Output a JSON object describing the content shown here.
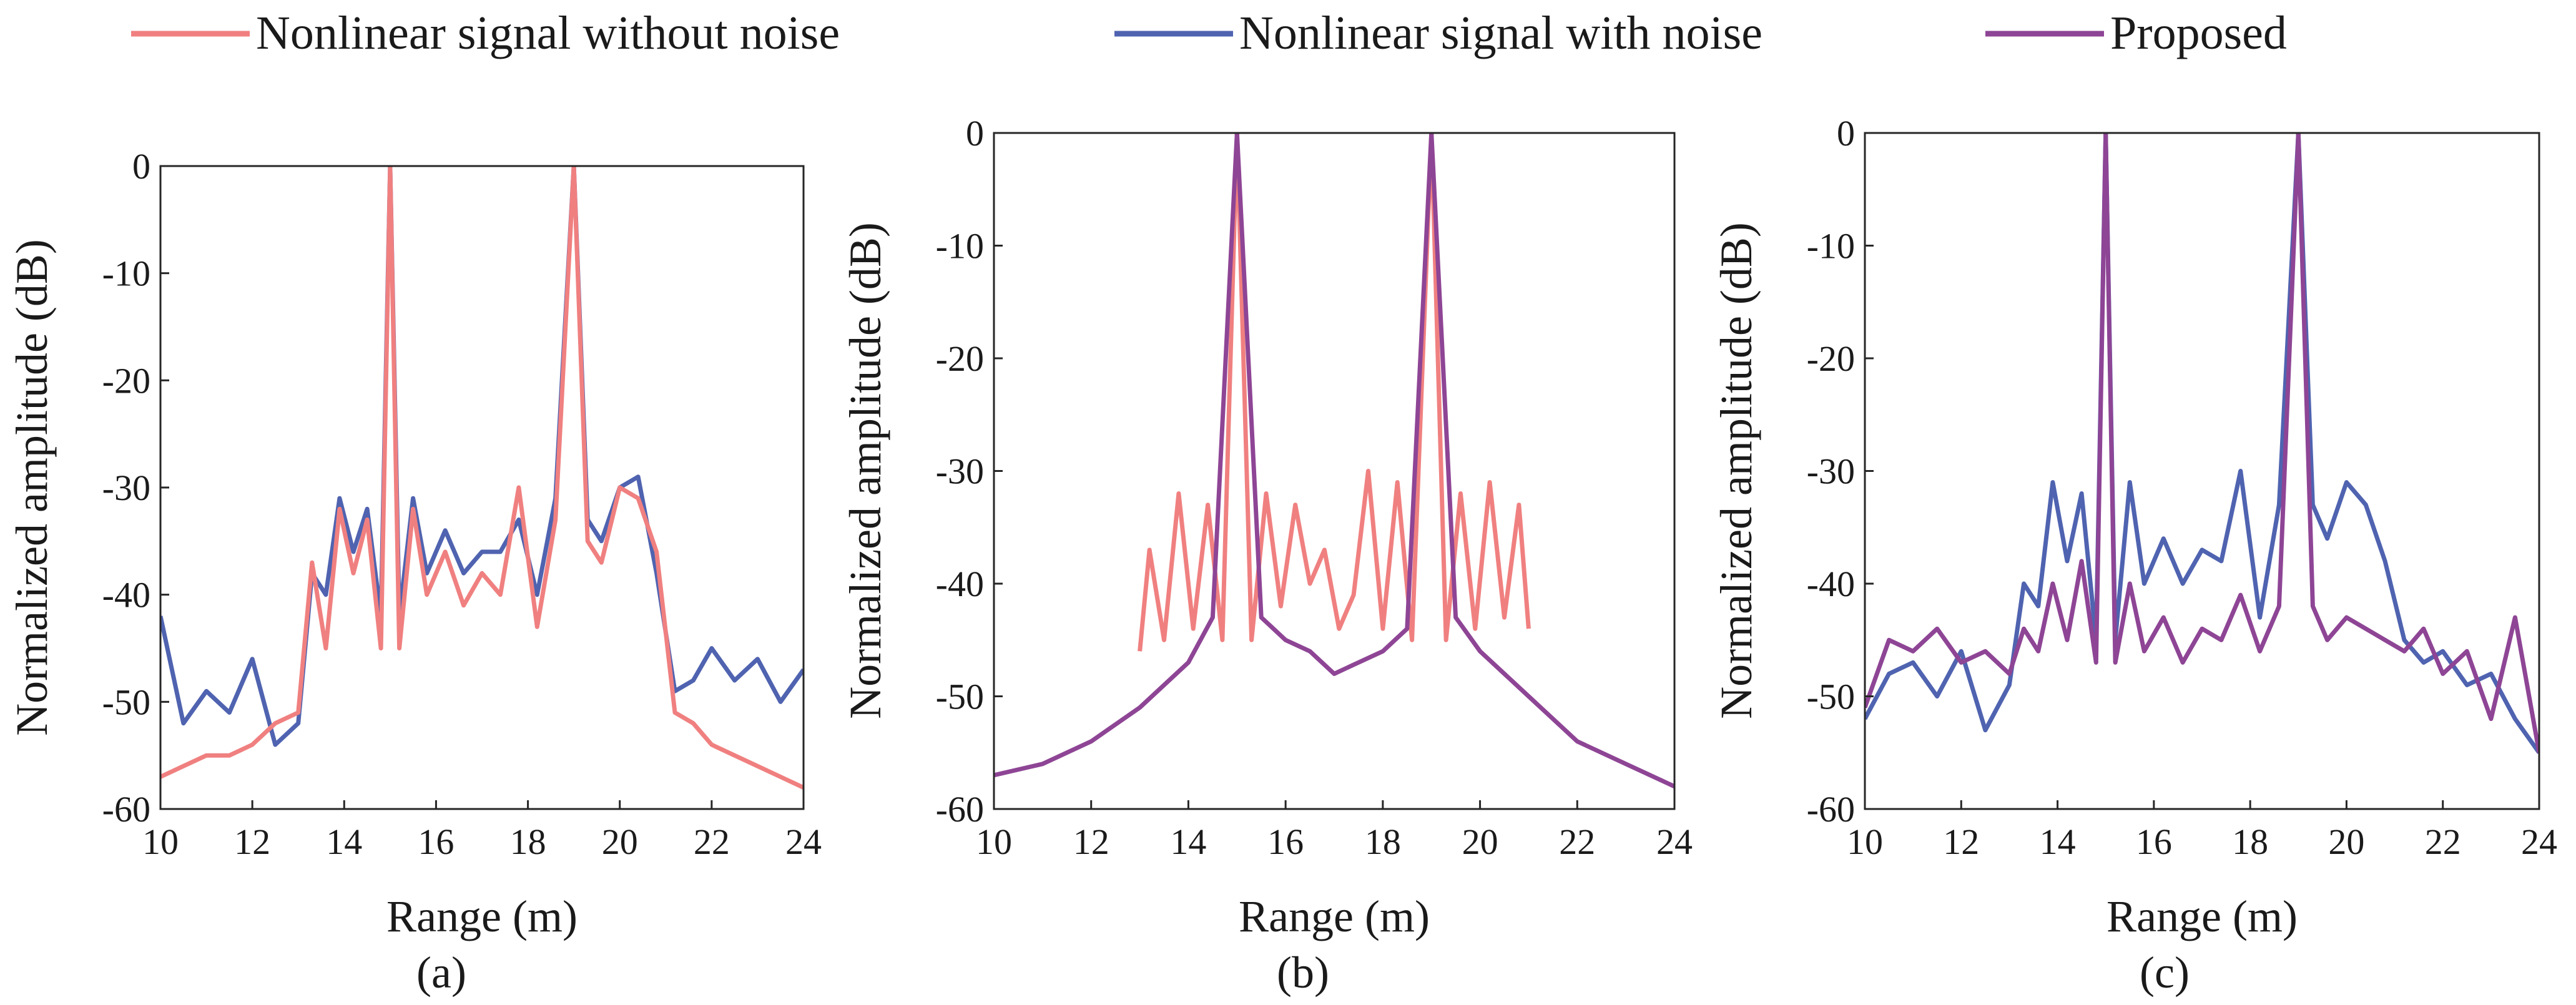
{
  "legend": [
    {
      "label": "Nonlinear signal without noise",
      "color": "#f08080"
    },
    {
      "label": "Nonlinear signal with noise",
      "color": "#4f63b0"
    },
    {
      "label": "Proposed",
      "color": "#8e4595"
    }
  ],
  "chart_data": [
    {
      "type": "line",
      "caption": "(a)",
      "xlabel": "Range (m)",
      "ylabel": "Normalized amplitude (dB)",
      "xlim": [
        10,
        24
      ],
      "ylim": [
        -60,
        0
      ],
      "xticks": [
        10,
        12,
        14,
        16,
        18,
        20,
        22,
        24
      ],
      "yticks": [
        0,
        -10,
        -20,
        -30,
        -40,
        -50,
        -60
      ],
      "series": [
        {
          "name": "Nonlinear signal with noise",
          "color": "#4f63b0",
          "x": [
            10,
            10.5,
            11,
            11.5,
            12,
            12.5,
            13,
            13.3,
            13.6,
            13.9,
            14.2,
            14.5,
            14.8,
            15,
            15.2,
            15.5,
            15.8,
            16.2,
            16.6,
            17,
            17.4,
            17.8,
            18.2,
            18.6,
            19,
            19.3,
            19.6,
            20,
            20.4,
            20.8,
            21.2,
            21.6,
            22,
            22.5,
            23,
            23.5,
            24
          ],
          "values": [
            -42,
            -52,
            -49,
            -51,
            -46,
            -54,
            -52,
            -38,
            -40,
            -31,
            -36,
            -32,
            -42,
            0,
            -42,
            -31,
            -38,
            -34,
            -38,
            -36,
            -36,
            -33,
            -40,
            -31,
            0,
            -33,
            -35,
            -30,
            -29,
            -38,
            -49,
            -48,
            -45,
            -48,
            -46,
            -50,
            -47
          ]
        },
        {
          "name": "Nonlinear signal without noise",
          "color": "#f08080",
          "x": [
            10,
            10.5,
            11,
            11.5,
            12,
            12.5,
            13,
            13.3,
            13.6,
            13.9,
            14.2,
            14.5,
            14.8,
            15,
            15.2,
            15.5,
            15.8,
            16.2,
            16.6,
            17,
            17.4,
            17.8,
            18.2,
            18.6,
            19,
            19.3,
            19.6,
            20,
            20.4,
            20.8,
            21.2,
            21.6,
            22,
            22.5,
            23,
            23.5,
            24
          ],
          "values": [
            -57,
            -56,
            -55,
            -55,
            -54,
            -52,
            -51,
            -37,
            -45,
            -32,
            -38,
            -33,
            -45,
            0,
            -45,
            -32,
            -40,
            -36,
            -41,
            -38,
            -40,
            -30,
            -43,
            -33,
            0,
            -35,
            -37,
            -30,
            -31,
            -36,
            -51,
            -52,
            -54,
            -55,
            -56,
            -57,
            -58
          ]
        }
      ]
    },
    {
      "type": "line",
      "caption": "(b)",
      "xlabel": "Range (m)",
      "ylabel": "Normalized amplitude (dB)",
      "xlim": [
        10,
        24
      ],
      "ylim": [
        -60,
        0
      ],
      "xticks": [
        10,
        12,
        14,
        16,
        18,
        20,
        22,
        24
      ],
      "yticks": [
        0,
        -10,
        -20,
        -30,
        -40,
        -50,
        -60
      ],
      "series": [
        {
          "name": "Nonlinear signal without noise",
          "color": "#f08080",
          "x": [
            13,
            13.2,
            13.5,
            13.8,
            14.1,
            14.4,
            14.7,
            15,
            15.3,
            15.6,
            15.9,
            16.2,
            16.5,
            16.8,
            17.1,
            17.4,
            17.7,
            18,
            18.3,
            18.6,
            19,
            19.3,
            19.6,
            19.9,
            20.2,
            20.5,
            20.8,
            21
          ],
          "values": [
            -46,
            -37,
            -45,
            -32,
            -44,
            -33,
            -45,
            0,
            -45,
            -32,
            -42,
            -33,
            -40,
            -37,
            -44,
            -41,
            -30,
            -44,
            -31,
            -45,
            0,
            -45,
            -32,
            -44,
            -31,
            -43,
            -33,
            -44
          ]
        },
        {
          "name": "Proposed",
          "color": "#8e4595",
          "x": [
            10,
            11,
            12,
            13,
            14,
            14.5,
            15,
            15.5,
            16,
            16.5,
            17,
            17.5,
            18,
            18.5,
            19,
            19.5,
            20,
            21,
            22,
            23,
            24
          ],
          "values": [
            -57,
            -56,
            -54,
            -51,
            -47,
            -43,
            0,
            -43,
            -45,
            -46,
            -48,
            -47,
            -46,
            -44,
            0,
            -43,
            -46,
            -50,
            -54,
            -56,
            -58
          ]
        }
      ]
    },
    {
      "type": "line",
      "caption": "(c)",
      "xlabel": "Range (m)",
      "ylabel": "Normalized amplitude (dB)",
      "xlim": [
        10,
        24
      ],
      "ylim": [
        -60,
        0
      ],
      "xticks": [
        10,
        12,
        14,
        16,
        18,
        20,
        22,
        24
      ],
      "yticks": [
        0,
        -10,
        -20,
        -30,
        -40,
        -50,
        -60
      ],
      "series": [
        {
          "name": "Nonlinear signal with noise",
          "color": "#4f63b0",
          "x": [
            10,
            10.5,
            11,
            11.5,
            12,
            12.5,
            13,
            13.3,
            13.6,
            13.9,
            14.2,
            14.5,
            14.8,
            15,
            15.2,
            15.5,
            15.8,
            16.2,
            16.6,
            17,
            17.4,
            17.8,
            18.2,
            18.6,
            19,
            19.3,
            19.6,
            20,
            20.4,
            20.8,
            21.2,
            21.6,
            22,
            22.5,
            23,
            23.5,
            24
          ],
          "values": [
            -52,
            -48,
            -47,
            -50,
            -46,
            -53,
            -49,
            -40,
            -42,
            -31,
            -38,
            -32,
            -45,
            0,
            -45,
            -31,
            -40,
            -36,
            -40,
            -37,
            -38,
            -30,
            -43,
            -33,
            0,
            -33,
            -36,
            -31,
            -33,
            -38,
            -45,
            -47,
            -46,
            -49,
            -48,
            -52,
            -55
          ]
        },
        {
          "name": "Proposed",
          "color": "#8e4595",
          "x": [
            10,
            10.5,
            11,
            11.5,
            12,
            12.5,
            13,
            13.3,
            13.6,
            13.9,
            14.2,
            14.5,
            14.8,
            15,
            15.2,
            15.5,
            15.8,
            16.2,
            16.6,
            17,
            17.4,
            17.8,
            18.2,
            18.6,
            19,
            19.3,
            19.6,
            20,
            20.4,
            20.8,
            21.2,
            21.6,
            22,
            22.5,
            23,
            23.5,
            24
          ],
          "values": [
            -51,
            -45,
            -46,
            -44,
            -47,
            -46,
            -48,
            -44,
            -46,
            -40,
            -45,
            -38,
            -47,
            0,
            -47,
            -40,
            -46,
            -43,
            -47,
            -44,
            -45,
            -41,
            -46,
            -42,
            0,
            -42,
            -45,
            -43,
            -44,
            -45,
            -46,
            -44,
            -48,
            -46,
            -52,
            -43,
            -55
          ]
        }
      ]
    }
  ]
}
